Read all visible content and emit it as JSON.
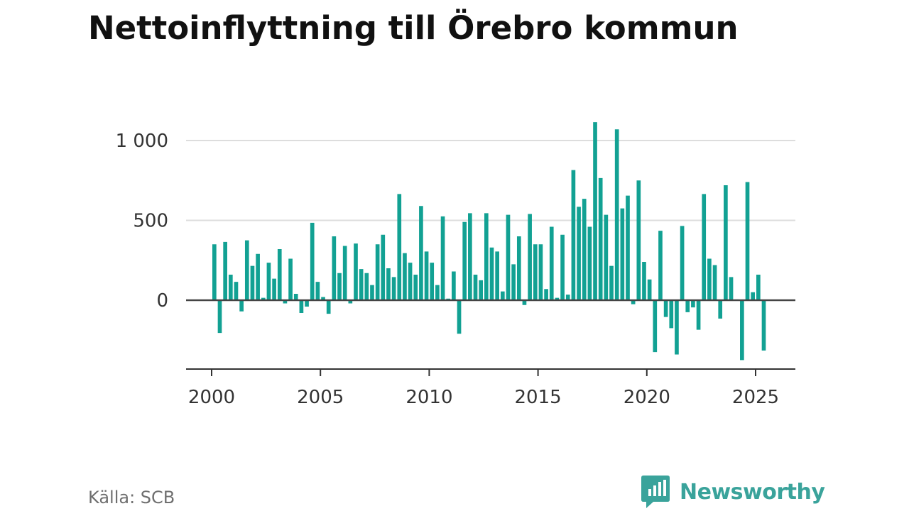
{
  "title": "Nettoinflyttning till Örebro kommun",
  "source": "Källa: SCB",
  "brand": {
    "name": "Newsworthy",
    "color": "#3aa39b",
    "icon": "newsworthy-logo-icon"
  },
  "colors": {
    "bars": "#12a193",
    "grid": "#dddddd",
    "zero_line": "#444444",
    "axis": "#333333"
  },
  "chart_data": {
    "type": "bar",
    "title": "Nettoinflyttning till Örebro kommun",
    "xlabel": "",
    "ylabel": "",
    "x_type": "quarterly",
    "start": "2000 Q1",
    "x_ticks": [
      2000,
      2005,
      2010,
      2015,
      2020,
      2025
    ],
    "y_ticks": [
      0,
      500,
      1000
    ],
    "y_tick_labels": [
      "0",
      "500",
      "1 000"
    ],
    "ylim": [
      -430,
      1230
    ],
    "xlim": [
      1999.75,
      2026.25
    ],
    "grid": true,
    "legend": "none",
    "values": [
      350,
      -205,
      365,
      160,
      115,
      -70,
      375,
      215,
      290,
      15,
      235,
      135,
      320,
      -20,
      260,
      40,
      -80,
      -40,
      485,
      115,
      20,
      -85,
      400,
      170,
      340,
      -20,
      355,
      195,
      170,
      95,
      350,
      410,
      200,
      145,
      665,
      295,
      235,
      160,
      590,
      305,
      235,
      95,
      525,
      10,
      180,
      -210,
      490,
      545,
      160,
      125,
      545,
      330,
      305,
      55,
      535,
      225,
      400,
      -30,
      540,
      350,
      350,
      70,
      460,
      15,
      410,
      35,
      815,
      585,
      635,
      460,
      1115,
      765,
      535,
      215,
      1070,
      575,
      655,
      -25,
      750,
      240,
      130,
      -325,
      435,
      -105,
      -175,
      -340,
      465,
      -75,
      -45,
      -185,
      665,
      260,
      220,
      -115,
      720,
      145,
      5,
      -375,
      740,
      50,
      160,
      -315
    ]
  }
}
